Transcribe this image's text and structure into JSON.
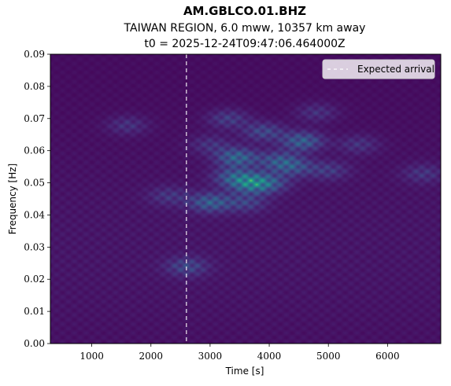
{
  "chart_data": {
    "type": "heatmap",
    "title": "AM.GBLCO.01.BHZ",
    "subtitle_lines": [
      "TAIWAN REGION, 6.0 mww, 10357 km away",
      "t0 = 2025-12-24T09:47:06.464000Z"
    ],
    "xlabel": "Time [s]",
    "ylabel": "Frequency [Hz]",
    "xlim": [
      300,
      6900
    ],
    "ylim": [
      0.0,
      0.09
    ],
    "x_ticks": [
      1000,
      2000,
      3000,
      4000,
      5000,
      6000
    ],
    "x_tick_labels": [
      "1000",
      "2000",
      "3000",
      "4000",
      "5000",
      "6000"
    ],
    "y_ticks": [
      0.0,
      0.01,
      0.02,
      0.03,
      0.04,
      0.05,
      0.06,
      0.07,
      0.08,
      0.09
    ],
    "y_tick_labels": [
      "0.00",
      "0.01",
      "0.02",
      "0.03",
      "0.04",
      "0.05",
      "0.06",
      "0.07",
      "0.08",
      "0.09"
    ],
    "colormap": "viridis",
    "hotspots": [
      {
        "t": 3700,
        "f": 0.05,
        "intensity": 1.0
      },
      {
        "t": 3450,
        "f": 0.058,
        "intensity": 0.8
      },
      {
        "t": 4550,
        "f": 0.063,
        "intensity": 0.75
      },
      {
        "t": 3000,
        "f": 0.044,
        "intensity": 0.7
      },
      {
        "t": 3400,
        "f": 0.052,
        "intensity": 0.6
      },
      {
        "t": 4150,
        "f": 0.057,
        "intensity": 0.55
      },
      {
        "t": 2600,
        "f": 0.024,
        "intensity": 0.45
      },
      {
        "t": 3900,
        "f": 0.066,
        "intensity": 0.5
      },
      {
        "t": 4400,
        "f": 0.055,
        "intensity": 0.5
      },
      {
        "t": 3300,
        "f": 0.07,
        "intensity": 0.4
      },
      {
        "t": 5000,
        "f": 0.054,
        "intensity": 0.35
      },
      {
        "t": 3600,
        "f": 0.044,
        "intensity": 0.4
      },
      {
        "t": 4000,
        "f": 0.05,
        "intensity": 0.45
      },
      {
        "t": 1600,
        "f": 0.068,
        "intensity": 0.3
      },
      {
        "t": 5500,
        "f": 0.062,
        "intensity": 0.3
      },
      {
        "t": 2300,
        "f": 0.046,
        "intensity": 0.3
      },
      {
        "t": 6600,
        "f": 0.053,
        "intensity": 0.3
      },
      {
        "t": 4800,
        "f": 0.072,
        "intensity": 0.3
      },
      {
        "t": 3000,
        "f": 0.062,
        "intensity": 0.3
      }
    ],
    "annotations": {
      "expected_arrival": {
        "x": 2600,
        "label": "Expected arrival",
        "line_style": "dashed",
        "color": "#ffffff"
      }
    },
    "legend": {
      "placement": "top-right",
      "entries": [
        "Expected arrival"
      ]
    }
  }
}
